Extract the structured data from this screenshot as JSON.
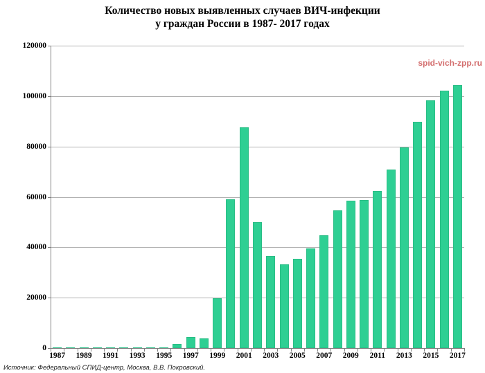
{
  "title": {
    "line1": "Количество новых выявленных случаев ВИЧ-инфекции",
    "line2": "у граждан России в 1987- 2017 годах"
  },
  "watermark": "spid-vich-zpp.ru",
  "source": "Источник: Федеральный СПИД-центр, Москва, В.В. Покровский.",
  "colors": {
    "bar_fill": "#2ecf93",
    "bar_border": "#29bd85",
    "gridline": "#b0b0b0",
    "axis": "#808080",
    "watermark_red": "#cc5555",
    "text": "#000000"
  },
  "chart_data": {
    "type": "bar",
    "title": "Количество новых выявленных случаев ВИЧ-инфекции у граждан России в 1987- 2017 годах",
    "categories": [
      1987,
      1988,
      1989,
      1990,
      1991,
      1992,
      1993,
      1994,
      1995,
      1996,
      1997,
      1998,
      1999,
      2000,
      2001,
      2002,
      2003,
      2004,
      2005,
      2006,
      2007,
      2008,
      2009,
      2010,
      2011,
      2012,
      2013,
      2014,
      2015,
      2016,
      2017
    ],
    "values": [
      25,
      49,
      270,
      110,
      85,
      86,
      106,
      158,
      196,
      1513,
      4315,
      3971,
      19758,
      59161,
      87671,
      49923,
      36396,
      33232,
      35554,
      39652,
      44757,
      54563,
      58448,
      58704,
      62385,
      70748,
      79728,
      89808,
      98232,
      102238,
      104402
    ],
    "xlabel": "",
    "ylabel": "",
    "ylim": [
      0,
      120000
    ],
    "yticks": [
      0,
      20000,
      40000,
      60000,
      80000,
      100000,
      120000
    ],
    "ytick_labels": [
      "0",
      "20000",
      "40000",
      "60000",
      "80000",
      "100000",
      "120000"
    ],
    "xtick_labels": [
      "1987",
      "1989",
      "1991",
      "1993",
      "1995",
      "1997",
      "1999",
      "2001",
      "2003",
      "2005",
      "2007",
      "2009",
      "2011",
      "2013",
      "2015",
      "2017"
    ],
    "grid": true,
    "legend": false
  }
}
